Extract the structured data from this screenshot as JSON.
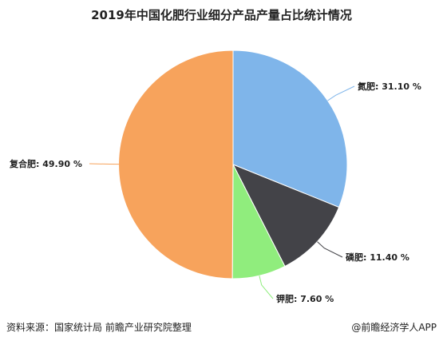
{
  "chart_data": {
    "type": "pie",
    "title": "2019年中国化肥行业细分产品产量占比统计情况",
    "unit": "%",
    "slices": [
      {
        "label": "氮肥",
        "value": 31.1,
        "display": "氮肥: 31.10 %",
        "color": "#7fb5ea"
      },
      {
        "label": "磷肥",
        "value": 11.4,
        "display": "磷肥: 11.40 %",
        "color": "#434348"
      },
      {
        "label": "钾肥",
        "value": 7.6,
        "display": "钾肥: 7.60 %",
        "color": "#90ed7d"
      },
      {
        "label": "复合肥",
        "value": 49.9,
        "display": "复合肥: 49.90 %",
        "color": "#f7a35c"
      }
    ]
  },
  "footer": {
    "source": "资料来源：国家统计局 前瞻产业研究院整理",
    "brand": "@前瞻经济学人APP"
  }
}
